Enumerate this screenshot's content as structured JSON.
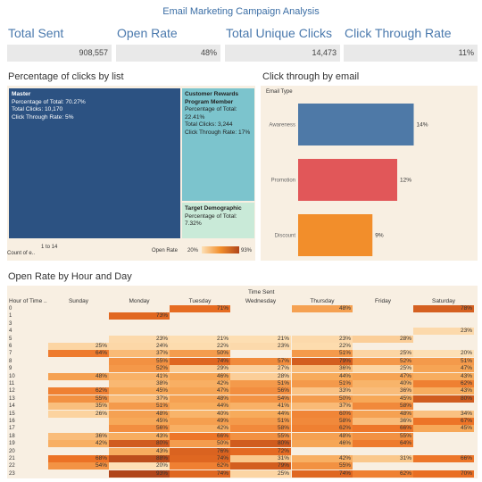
{
  "title": "Email Marketing Campaign Analysis",
  "kpis": [
    {
      "label": "Total Sent",
      "value": "908,557"
    },
    {
      "label": "Open Rate",
      "value": "48%"
    },
    {
      "label": "Total Unique Clicks",
      "value": "14,473"
    },
    {
      "label": "Click Through Rate",
      "value": "11%"
    }
  ],
  "treemap": {
    "title": "Percentage of clicks by list",
    "blocks": [
      {
        "name": "Master",
        "lines": [
          "Percentage of Total: 70.27%",
          "Total Clicks: 10,170",
          "Click Through Rate: 5%"
        ]
      },
      {
        "name": "Customer Rewards Program Member",
        "lines": [
          "Percentage of Total: 22.41%",
          "Total Clicks: 3,244",
          "Click Through Rate: 17%"
        ]
      },
      {
        "name": "Target Demographic",
        "lines": [
          "Percentage of Total: 7.32%"
        ]
      }
    ],
    "size_legend_label": "Count of e..",
    "size_legend_range": "1 to 14",
    "color_legend_label": "Open Rate",
    "color_legend_min": "20%",
    "color_legend_max": "93%"
  },
  "bar_chart": {
    "title": "Click through by email",
    "legend_title": "Email Type",
    "colors": [
      "#4e79a7",
      "#e15759",
      "#f28e2b"
    ]
  },
  "heatmap": {
    "title": "Open Rate by Hour and Day",
    "column_header": "Time Sent",
    "row_header": "Hour of Time ..",
    "days": [
      "Sunday",
      "Monday",
      "Tuesday",
      "Wednesday",
      "Thursday",
      "Friday",
      "Saturday"
    ]
  },
  "chart_data": {
    "type": "bar",
    "orientation": "horizontal",
    "categories": [
      "Awareness",
      "Promotion",
      "Discount"
    ],
    "values": [
      14,
      12,
      9
    ],
    "value_labels": [
      "14%",
      "12%",
      "9%"
    ],
    "xlabel": "",
    "ylabel": "",
    "xlim": [
      0,
      16
    ],
    "grid": false
  },
  "heatmap_data": {
    "hours": [
      "0",
      "1",
      "3",
      "4",
      "5",
      "6",
      "7",
      "8",
      "9",
      "10",
      "11",
      "12",
      "13",
      "14",
      "15",
      "16",
      "17",
      "18",
      "19",
      "20",
      "21",
      "22",
      "23"
    ],
    "values": [
      [
        null,
        null,
        71,
        null,
        48,
        null,
        78
      ],
      [
        null,
        73,
        null,
        null,
        null,
        null,
        null
      ],
      [
        null,
        null,
        null,
        null,
        null,
        null,
        null
      ],
      [
        null,
        null,
        null,
        null,
        null,
        null,
        23
      ],
      [
        null,
        23,
        21,
        21,
        23,
        28,
        null
      ],
      [
        25,
        24,
        22,
        23,
        22,
        null,
        null
      ],
      [
        64,
        37,
        50,
        null,
        51,
        25,
        20
      ],
      [
        null,
        55,
        74,
        57,
        79,
        52,
        51
      ],
      [
        null,
        52,
        29,
        27,
        36,
        25,
        47
      ],
      [
        48,
        41,
        46,
        28,
        44,
        47,
        43
      ],
      [
        null,
        38,
        42,
        51,
        51,
        40,
        62
      ],
      [
        62,
        45,
        47,
        56,
        33,
        36,
        43
      ],
      [
        55,
        37,
        48,
        54,
        50,
        45,
        80
      ],
      [
        35,
        51,
        44,
        41,
        37,
        58,
        null
      ],
      [
        26,
        48,
        40,
        44,
        60,
        48,
        34
      ],
      [
        null,
        45,
        49,
        51,
        58,
        36,
        67
      ],
      [
        null,
        56,
        42,
        58,
        62,
        66,
        45
      ],
      [
        36,
        43,
        66,
        55,
        48,
        55,
        null
      ],
      [
        42,
        80,
        50,
        80,
        46,
        64,
        null
      ],
      [
        null,
        43,
        76,
        72,
        null,
        null,
        null
      ],
      [
        68,
        88,
        74,
        31,
        42,
        31,
        66
      ],
      [
        54,
        20,
        62,
        79,
        55,
        null,
        null
      ],
      [
        null,
        93,
        74,
        25,
        74,
        62,
        70
      ]
    ]
  }
}
